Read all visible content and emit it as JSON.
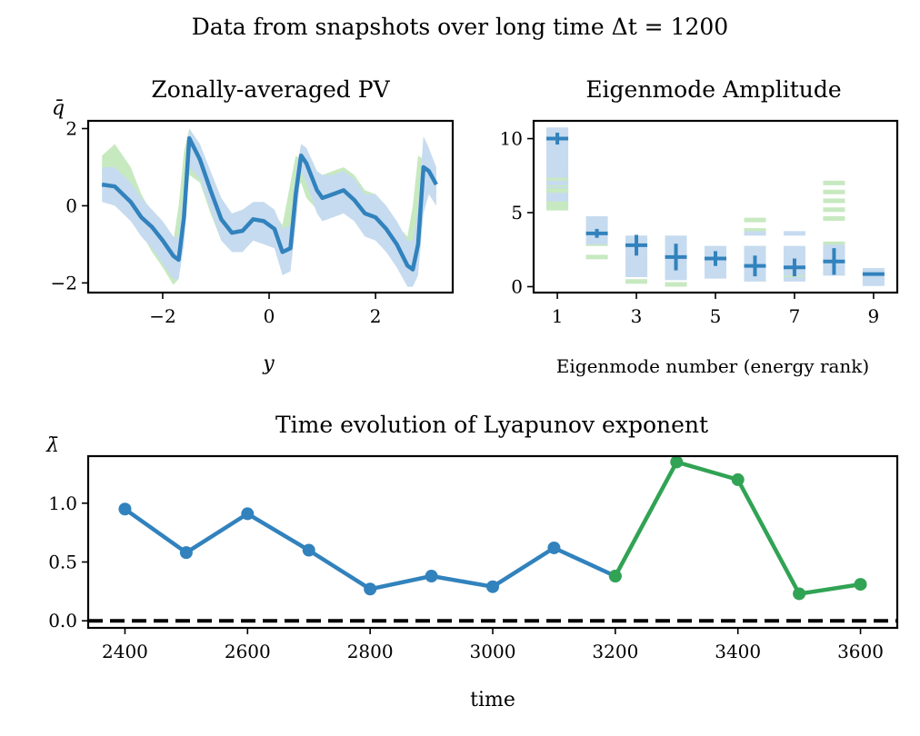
{
  "suptitle": "Data from snapshots over long time Δt = 1200",
  "colors": {
    "blue": "#3182bd",
    "light_blue": "#c6dbef",
    "light_green": "#c7e9c0",
    "green": "#31a354",
    "black": "#000000"
  },
  "chart_data": [
    {
      "type": "line",
      "title": "Zonally-averaged PV",
      "xlabel": "y",
      "ylabel": "q̄",
      "xlim": [
        -3.4,
        3.45
      ],
      "ylim": [
        -2.25,
        2.2
      ],
      "xticks": [
        -2,
        0,
        2
      ],
      "yticks": [
        -2,
        0,
        2
      ],
      "series": [
        {
          "role": "mean",
          "color": "#3182bd",
          "x": [
            -3.14,
            -2.9,
            -2.6,
            -2.4,
            -2.2,
            -2.0,
            -1.8,
            -1.7,
            -1.6,
            -1.5,
            -1.3,
            -1.1,
            -0.9,
            -0.7,
            -0.5,
            -0.3,
            -0.1,
            0.1,
            0.25,
            0.4,
            0.5,
            0.6,
            0.7,
            0.9,
            1.0,
            1.2,
            1.4,
            1.6,
            1.8,
            2.0,
            2.2,
            2.4,
            2.6,
            2.7,
            2.8,
            2.9,
            3.0,
            3.14
          ],
          "y": [
            0.55,
            0.5,
            0.1,
            -0.3,
            -0.55,
            -0.9,
            -1.3,
            -1.4,
            -0.3,
            1.75,
            1.2,
            0.4,
            -0.35,
            -0.7,
            -0.65,
            -0.35,
            -0.4,
            -0.6,
            -1.2,
            -1.1,
            0.3,
            1.3,
            1.1,
            0.4,
            0.2,
            0.3,
            0.4,
            0.15,
            -0.2,
            -0.3,
            -0.6,
            -1.0,
            -1.55,
            -1.65,
            -1.0,
            1.0,
            0.9,
            0.55
          ]
        },
        {
          "role": "band",
          "color": "#c6dbef",
          "x": [
            -3.14,
            -2.9,
            -2.6,
            -2.4,
            -2.2,
            -2.0,
            -1.8,
            -1.7,
            -1.6,
            -1.5,
            -1.3,
            -1.1,
            -0.9,
            -0.7,
            -0.5,
            -0.3,
            -0.1,
            0.1,
            0.25,
            0.4,
            0.5,
            0.6,
            0.7,
            0.9,
            1.0,
            1.2,
            1.4,
            1.6,
            1.8,
            2.0,
            2.2,
            2.4,
            2.6,
            2.7,
            2.8,
            2.9,
            3.0,
            3.14
          ],
          "upper": [
            1.0,
            1.0,
            0.6,
            0.2,
            -0.1,
            -0.4,
            -0.8,
            -0.8,
            0.4,
            2.0,
            1.6,
            0.9,
            0.2,
            -0.2,
            -0.1,
            0.1,
            0.1,
            -0.1,
            -0.6,
            -0.5,
            0.9,
            1.6,
            1.5,
            0.9,
            0.8,
            0.8,
            0.9,
            0.7,
            0.3,
            0.3,
            0.0,
            -0.4,
            -0.9,
            -0.9,
            0.0,
            1.8,
            1.5,
            1.0
          ],
          "lower": [
            0.1,
            0.0,
            -0.4,
            -0.8,
            -1.1,
            -1.5,
            -1.9,
            -1.9,
            -1.0,
            1.0,
            0.7,
            -0.1,
            -0.9,
            -1.2,
            -1.2,
            -0.9,
            -1.0,
            -1.1,
            -1.8,
            -1.7,
            -0.5,
            0.9,
            0.6,
            -0.2,
            -0.4,
            -0.3,
            -0.2,
            -0.4,
            -0.8,
            -0.9,
            -1.2,
            -1.6,
            -2.1,
            -2.1,
            -1.8,
            -0.2,
            0.3,
            0.0
          ]
        },
        {
          "role": "alt-band",
          "color": "#c7e9c0",
          "x": [
            -3.14,
            -2.9,
            -2.6,
            -2.4,
            -2.2,
            -2.0,
            -1.8,
            -1.7,
            -1.6,
            -1.5,
            -1.3,
            -1.1,
            -0.9,
            -0.7,
            -0.5,
            -0.3,
            -0.1,
            0.1,
            0.25,
            0.4,
            0.5,
            0.6,
            0.7,
            0.9,
            1.0,
            1.2,
            1.4,
            1.6,
            1.8,
            2.0,
            2.2,
            2.4,
            2.6,
            2.7,
            2.8,
            2.9,
            3.0,
            3.14
          ],
          "upper": [
            1.3,
            1.6,
            1.0,
            0.3,
            -0.2,
            -0.6,
            -0.9,
            0.0,
            1.4,
            2.0,
            1.6,
            0.6,
            -0.1,
            -0.4,
            -0.3,
            0.0,
            0.0,
            -0.2,
            -0.5,
            0.6,
            1.3,
            1.2,
            0.9,
            0.7,
            0.8,
            0.9,
            1.0,
            0.8,
            0.4,
            0.3,
            0.0,
            -0.5,
            -0.8,
            0.0,
            1.3,
            1.2,
            1.0,
            0.8
          ],
          "lower": [
            0.5,
            0.3,
            -0.2,
            -0.7,
            -1.2,
            -1.6,
            -2.05,
            -1.9,
            -0.8,
            0.8,
            0.6,
            -0.2,
            -0.9,
            -1.1,
            -1.0,
            -0.7,
            -0.8,
            -1.0,
            -1.4,
            -1.0,
            0.4,
            0.6,
            0.2,
            -0.1,
            -0.2,
            -0.1,
            -0.1,
            -0.3,
            -0.7,
            -0.8,
            -1.1,
            -1.5,
            -2.0,
            -2.0,
            -1.6,
            0.4,
            0.4,
            0.3
          ]
        }
      ]
    },
    {
      "type": "scatter",
      "title": "Eigenmode Amplitude",
      "xlabel": "Eigenmode number (energy rank)",
      "xlim": [
        0.4,
        9.6
      ],
      "ylim": [
        -0.4,
        11.2
      ],
      "xticks": [
        1,
        3,
        5,
        7,
        9
      ],
      "yticks": [
        0,
        5,
        10
      ],
      "modes": [
        1,
        2,
        3,
        4,
        5,
        6,
        7,
        8,
        9
      ],
      "means": [
        10.0,
        3.6,
        2.8,
        2.0,
        1.9,
        1.4,
        1.3,
        1.7,
        0.85
      ],
      "errors": [
        0.4,
        0.3,
        0.7,
        0.9,
        0.5,
        0.7,
        0.6,
        0.9,
        0.0
      ],
      "box_low": [
        5.3,
        3.0,
        0.8,
        0.6,
        0.7,
        0.5,
        0.5,
        0.9,
        0.2
      ],
      "box_high": [
        10.6,
        4.6,
        3.3,
        3.3,
        2.6,
        2.6,
        2.6,
        2.7,
        1.1
      ],
      "blue_lines": [
        [
          10.6,
          9.7,
          8.6,
          7.6,
          7.0
        ],
        [
          4.6,
          3.4,
          3.0
        ],
        [
          3.3,
          2.6,
          2.0,
          1.2,
          0.8
        ],
        [
          3.3,
          2.7,
          2.0,
          1.4,
          0.6
        ],
        [
          2.6,
          2.1,
          1.7,
          1.2,
          0.7
        ],
        [
          3.6,
          2.6,
          1.8,
          1.2,
          0.5
        ],
        [
          3.6,
          2.6,
          1.8,
          1.0,
          0.5
        ],
        [
          2.7,
          2.0,
          1.5,
          0.9
        ],
        [
          1.1,
          0.6,
          0.2
        ]
      ],
      "green_lines": [
        [
          7.2,
          6.9,
          6.5,
          5.6,
          5.3
        ],
        [
          2.9,
          2.0
        ],
        [
          0.35
        ],
        [
          0.15
        ],
        [],
        [
          4.5,
          3.8,
          2.6
        ],
        [
          0.6
        ],
        [
          7.0,
          6.4,
          5.8,
          5.2,
          4.6,
          2.9
        ],
        []
      ]
    },
    {
      "type": "line",
      "title": "Time evolution of Lyapunov exponent",
      "xlabel": "time",
      "ylabel": "λ̄",
      "xlim": [
        2340,
        3660
      ],
      "ylim": [
        -0.06,
        1.4
      ],
      "xticks": [
        2400,
        2600,
        2800,
        3000,
        3200,
        3400,
        3600
      ],
      "ytick_labels": [
        "0.0",
        "0.5",
        "1.0"
      ],
      "yticks": [
        0,
        0.5,
        1.0
      ],
      "reference_line": 0,
      "series": [
        {
          "color": "#3182bd",
          "x": [
            2400,
            2500,
            2600,
            2700,
            2800,
            2900,
            3000,
            3100,
            3200
          ],
          "y": [
            0.95,
            0.58,
            0.91,
            0.6,
            0.27,
            0.38,
            0.29,
            0.62,
            0.38
          ]
        },
        {
          "color": "#31a354",
          "x": [
            3200,
            3300,
            3400,
            3500,
            3600
          ],
          "y": [
            0.38,
            1.35,
            1.2,
            0.23,
            0.31
          ]
        }
      ]
    }
  ]
}
